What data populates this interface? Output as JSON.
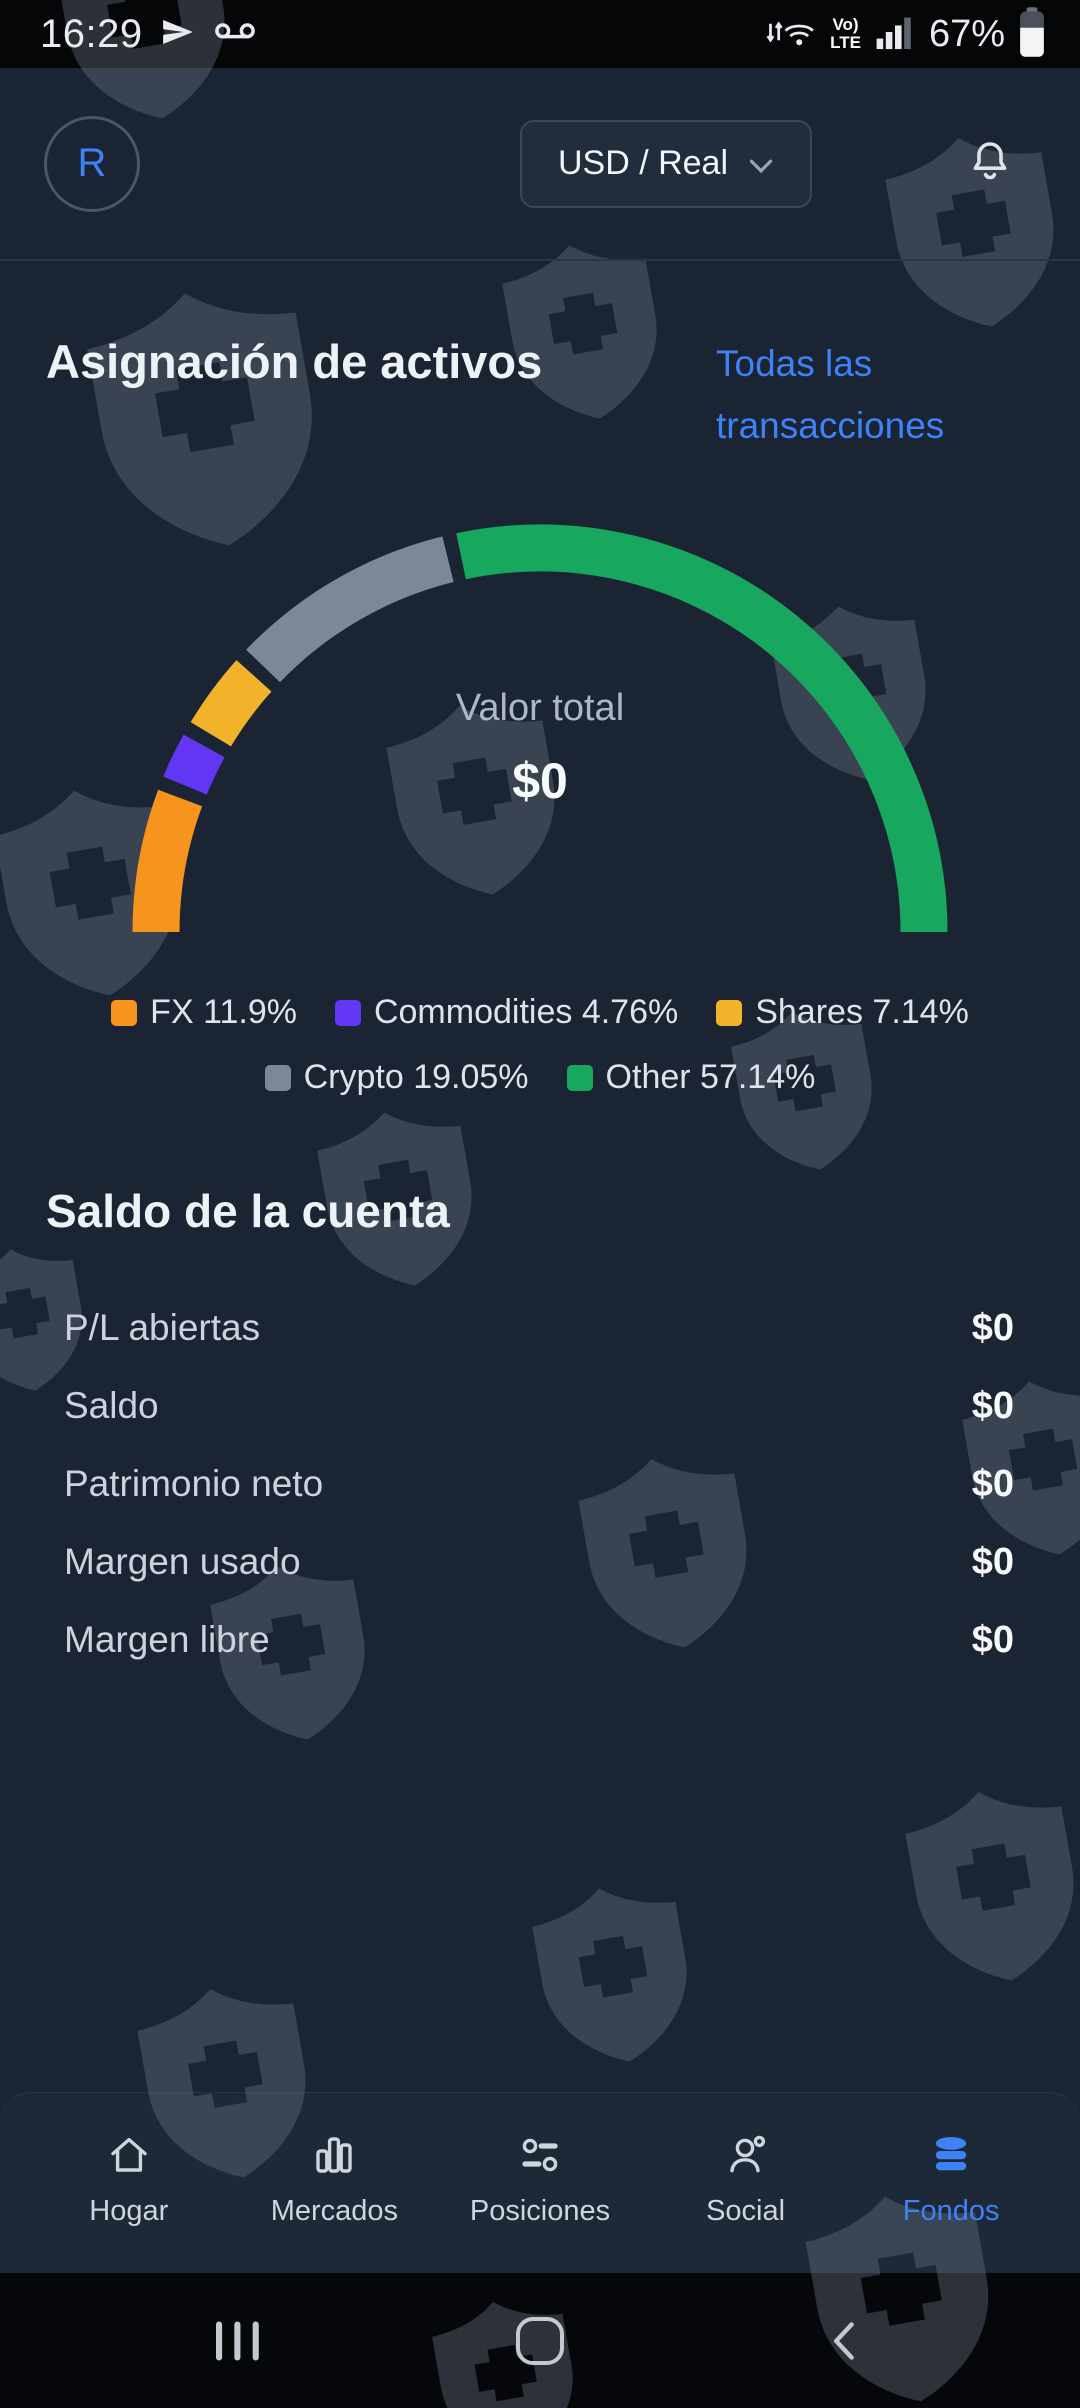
{
  "status_bar": {
    "time": "16:29",
    "battery_pct": "67%",
    "volte_line1": "Vo)",
    "volte_line2": "LTE",
    "icons": [
      "telegram-send-icon",
      "voicemail-icon",
      "wifi-arrows-icon",
      "signal-bars-icon",
      "battery-icon"
    ]
  },
  "header": {
    "avatar_letter": "R",
    "currency": "USD / Real",
    "icons": [
      "chevron-down-icon",
      "bell-icon"
    ]
  },
  "page": {
    "title": "Asignación de activos",
    "transactions_link": "Todas las transacciones"
  },
  "chart_data": {
    "type": "donut-gauge",
    "shape": "semicircle",
    "start_angle_deg": 180,
    "end_angle_deg": 0,
    "center_label": "Valor total",
    "center_value": "$0",
    "legend_position": "bottom",
    "segments": [
      {
        "label": "FX",
        "pct": 11.9,
        "pct_text": "11.9%",
        "color": "#f7941e"
      },
      {
        "label": "Commodities",
        "pct": 4.76,
        "pct_text": "4.76%",
        "color": "#6236f5"
      },
      {
        "label": "Shares",
        "pct": 7.14,
        "pct_text": "7.14%",
        "color": "#f2b32a"
      },
      {
        "label": "Crypto",
        "pct": 19.05,
        "pct_text": "19.05%",
        "color": "#7d8798"
      },
      {
        "label": "Other",
        "pct": 57.14,
        "pct_text": "57.14%",
        "color": "#17a75e"
      }
    ],
    "accent_blue": "#3d82f7"
  },
  "balance": {
    "heading": "Saldo de la cuenta",
    "rows": [
      {
        "label": "P/L abiertas",
        "value": "$0"
      },
      {
        "label": "Saldo",
        "value": "$0"
      },
      {
        "label": "Patrimonio neto",
        "value": "$0"
      },
      {
        "label": "Margen usado",
        "value": "$0"
      },
      {
        "label": "Margen libre",
        "value": "$0"
      }
    ]
  },
  "bottom_nav": {
    "items": [
      {
        "label": "Hogar",
        "icon": "home-icon",
        "active": false
      },
      {
        "label": "Mercados",
        "icon": "bar-chart-icon",
        "active": false
      },
      {
        "label": "Posiciones",
        "icon": "sliders-icon",
        "active": false
      },
      {
        "label": "Social",
        "icon": "person-icon",
        "active": false
      },
      {
        "label": "Fondos",
        "icon": "coins-icon",
        "active": true
      }
    ]
  }
}
